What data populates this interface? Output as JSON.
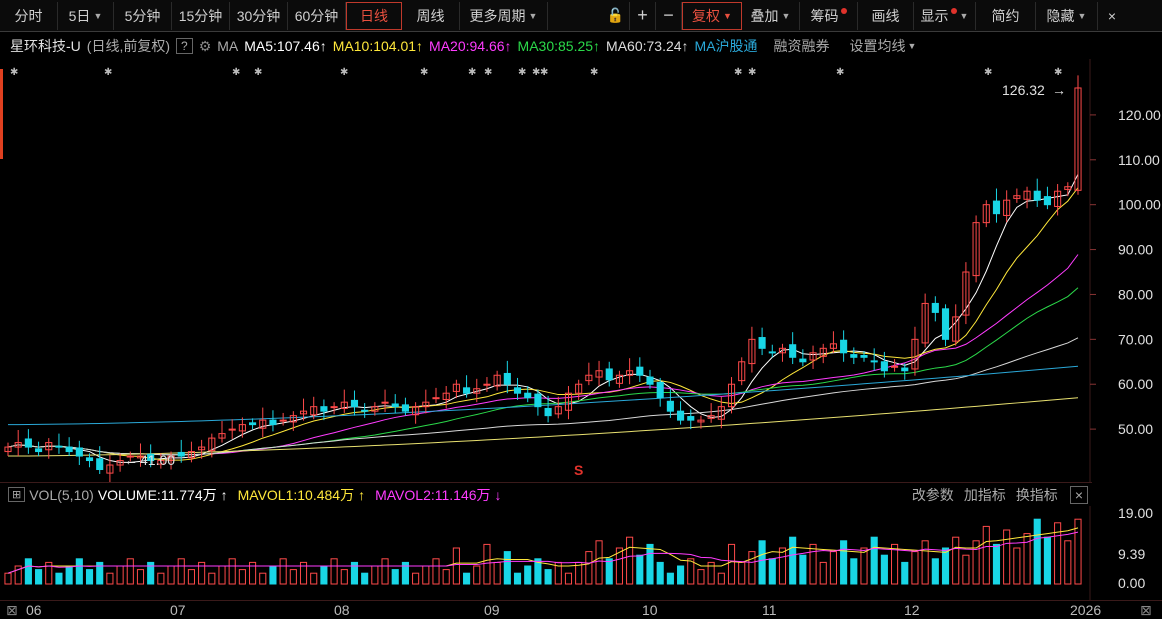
{
  "toolbar": {
    "periods": [
      "分时",
      "5日",
      "5分钟",
      "15分钟",
      "30分钟",
      "60分钟",
      "日线",
      "周线",
      "更多周期"
    ],
    "active_period": "日线",
    "right_items": [
      "复权",
      "叠加",
      "筹码",
      "画线",
      "显示",
      "简约",
      "隐藏"
    ]
  },
  "ma_bar": {
    "stock": "星环科技-U",
    "mode": "(日线,前复权)",
    "help": "?",
    "ma_label": "MA",
    "ma5": "MA5:107.46",
    "ma10": "MA10:104.01",
    "ma20": "MA20:94.66",
    "ma30": "MA30:85.25",
    "ma60": "MA60:73.24",
    "hgt": "MA沪股通",
    "rzrq": "融资融券",
    "setting": "设置均线"
  },
  "colors": {
    "up": "#ff4a4a",
    "down": "#19d6e6",
    "ma5": "#ffffff",
    "ma10": "#ffe83b",
    "ma20": "#ff3cff",
    "ma30": "#2bd94a",
    "ma60": "#d8d8d8",
    "ma120": "#2aa8d8",
    "ma250": "#e8e070"
  },
  "price_axis": [
    "120.00",
    "110.00",
    "100.00",
    "90.00",
    "80.00",
    "70.00",
    "60.00",
    "50.00"
  ],
  "annotations": {
    "high": "126.32",
    "low": "41.00",
    "event": "S"
  },
  "vol_bar": {
    "label": "VOL(5,10)",
    "volume": "VOLUME:11.774万",
    "mavol1": "MAVOL1:10.484万",
    "mavol2": "MAVOL2:11.146万",
    "edit": "改参数",
    "add": "加指标",
    "switch": "换指标",
    "close": "×"
  },
  "vol_axis": [
    "19.00",
    "9.39",
    "0.00"
  ],
  "x_axis": [
    "06",
    "07",
    "08",
    "09",
    "10",
    "11",
    "12",
    "2026"
  ],
  "chart_data": {
    "type": "candlestick",
    "note_series": "daily close approximations",
    "y_range": [
      40,
      128
    ],
    "highest": 126.32,
    "lowest": 41.0,
    "closes": [
      46,
      47,
      46,
      45,
      47,
      46,
      45,
      44,
      43,
      41,
      42,
      43,
      44,
      44,
      43,
      43,
      44,
      44,
      45,
      46,
      48,
      49,
      50,
      51,
      51,
      52,
      51,
      52,
      53,
      54,
      55,
      54,
      55,
      56,
      55,
      54,
      55,
      56,
      55,
      54,
      55,
      56,
      57,
      58,
      60,
      58,
      59,
      60,
      62,
      60,
      58,
      57,
      55,
      53,
      55,
      58,
      60,
      62,
      63,
      61,
      62,
      63,
      62,
      60,
      57,
      54,
      52,
      52,
      52,
      53,
      55,
      60,
      65,
      70,
      68,
      67,
      68,
      66,
      65,
      67,
      68,
      69,
      67,
      66,
      66,
      65,
      63,
      64,
      63,
      70,
      78,
      76,
      70,
      75,
      85,
      96,
      100,
      98,
      101,
      102,
      103,
      101,
      100,
      103,
      104,
      126
    ]
  }
}
